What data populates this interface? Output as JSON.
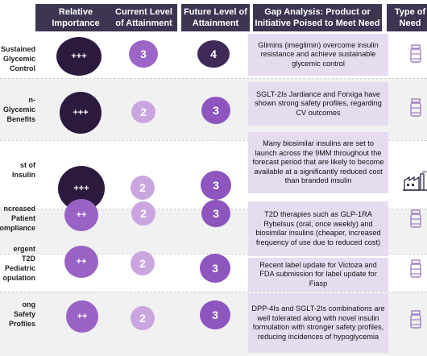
{
  "headers": {
    "importance": "Relative Importance",
    "current": "Current Level of Attainment",
    "future": "Future Level of Attainment",
    "gap": "Gap Analysis: Product or Initiative Poised to Meet Need",
    "type": "Type of Need"
  },
  "rows": [
    {
      "label": "Sustained Glycemic Control",
      "importance": "+++",
      "current": "3",
      "future": "4",
      "gap": "Glimins (imeglimin) overcome insulin resistance and achieve sustainable glycemic control",
      "type_icon": "medicine-bottle-icon"
    },
    {
      "label": "n-Glycemic Benefits",
      "importance": "+++",
      "current": "2",
      "future": "3",
      "gap": "SGLT-2Is Jardiance and Forxiga have shown strong safety profiles, regarding CV outcomes",
      "type_icon": "medicine-bottle-icon"
    },
    {
      "label": "st of Insulin",
      "importance": "+++",
      "current": "2",
      "future": "3",
      "gap": "Many biosimilar insulins are set to launch across the 9MM throughout the forecast period that are likely to become available at a significantly reduced cost than branded insulin",
      "type_icon": "factory-icon"
    },
    {
      "label": "ncreased Patient ompliance",
      "importance": "++",
      "current": "2",
      "future": "3",
      "gap": "T2D therapies such as GLP-1RA Rybelsus (oral, once weekly) and biosimilar insulins (cheaper, increased frequency of use due to reduced cost)",
      "type_icon": "medicine-bottle-icon"
    },
    {
      "label": "ergent T2D Pediatric opulation",
      "importance": "++",
      "current": "2",
      "future": "3",
      "gap": "Recent label update for Victoza and FDA submission for label update for Fiasp",
      "type_icon": "medicine-bottle-icon"
    },
    {
      "label": "ong Safety Profiles",
      "importance": "++",
      "current": "2",
      "future": "3",
      "gap": "DPP-4Is and SGLT-2Is combinations are well tolerated along with novel insulin formulation with stronger safety profiles, reducing incidences of hypoglycemia",
      "type_icon": "medicine-bottle-icon"
    }
  ],
  "colors": {
    "header": "#3d3552",
    "importance_high": "#2c1a3e",
    "importance_mid": "#9a62c4",
    "current_3": "#9b66c8",
    "current_2": "#c9a6e0",
    "future_4": "#3f2a57",
    "future_3": "#8d55bd",
    "gap_bg": "#e6dcf0",
    "icon": "#9f7fc2"
  }
}
